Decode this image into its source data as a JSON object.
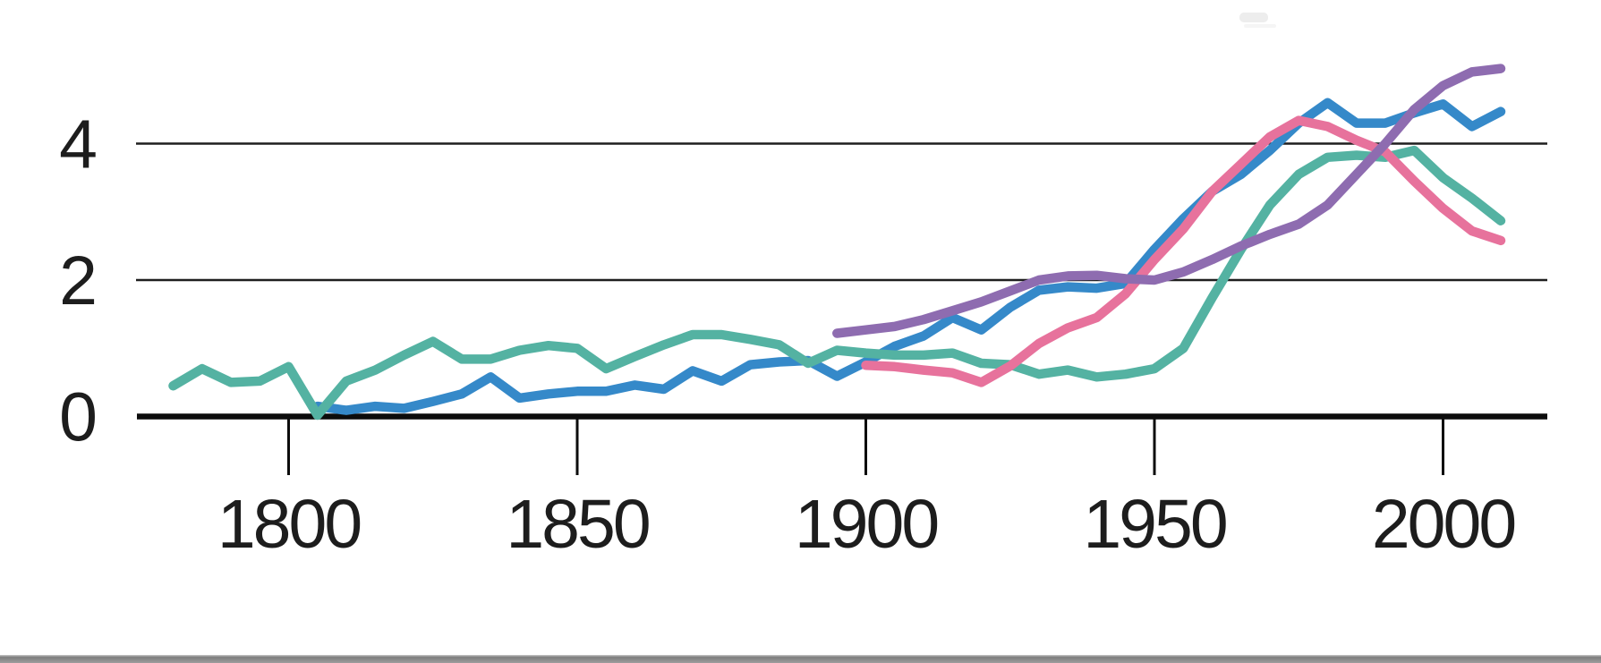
{
  "page": {
    "background": "#ffffff"
  },
  "footer_bar": {
    "color": "#9a9a9a"
  },
  "chart_data": {
    "type": "line",
    "title": "",
    "xlabel": "",
    "ylabel": "",
    "legend": "none",
    "grid": "horizontal-only",
    "x_range": [
      1774,
      2018
    ],
    "y_range": [
      0,
      5.45
    ],
    "x_ticks": [
      1800,
      1850,
      1900,
      1950,
      2000
    ],
    "y_ticks": [
      0,
      2,
      4
    ],
    "gridline_y_values": [
      2,
      4
    ],
    "axis_color": "#0c0c0c",
    "label_color": "#1d1d1d",
    "series": [
      {
        "name": "series-blue",
        "color": "#3589c9",
        "points": [
          [
            1805,
            0.15
          ],
          [
            1810,
            0.09
          ],
          [
            1815,
            0.15
          ],
          [
            1820,
            0.12
          ],
          [
            1825,
            0.22
          ],
          [
            1830,
            0.33
          ],
          [
            1835,
            0.58
          ],
          [
            1840,
            0.27
          ],
          [
            1845,
            0.33
          ],
          [
            1850,
            0.37
          ],
          [
            1855,
            0.37
          ],
          [
            1860,
            0.46
          ],
          [
            1865,
            0.4
          ],
          [
            1870,
            0.67
          ],
          [
            1875,
            0.52
          ],
          [
            1880,
            0.76
          ],
          [
            1885,
            0.8
          ],
          [
            1890,
            0.82
          ],
          [
            1895,
            0.59
          ],
          [
            1900,
            0.8
          ],
          [
            1905,
            1.03
          ],
          [
            1910,
            1.18
          ],
          [
            1915,
            1.45
          ],
          [
            1920,
            1.27
          ],
          [
            1925,
            1.6
          ],
          [
            1930,
            1.85
          ],
          [
            1935,
            1.9
          ],
          [
            1940,
            1.88
          ],
          [
            1945,
            1.95
          ],
          [
            1950,
            2.45
          ],
          [
            1955,
            2.9
          ],
          [
            1960,
            3.3
          ],
          [
            1965,
            3.55
          ],
          [
            1970,
            3.9
          ],
          [
            1975,
            4.3
          ],
          [
            1980,
            4.6
          ],
          [
            1985,
            4.3
          ],
          [
            1990,
            4.3
          ],
          [
            1995,
            4.45
          ],
          [
            2000,
            4.58
          ],
          [
            2005,
            4.25
          ],
          [
            2010,
            4.47
          ]
        ]
      },
      {
        "name": "series-teal",
        "color": "#54b2a2",
        "points": [
          [
            1780,
            0.45
          ],
          [
            1785,
            0.7
          ],
          [
            1790,
            0.5
          ],
          [
            1795,
            0.52
          ],
          [
            1800,
            0.73
          ],
          [
            1805,
            0.02
          ],
          [
            1810,
            0.52
          ],
          [
            1815,
            0.68
          ],
          [
            1820,
            0.9
          ],
          [
            1825,
            1.1
          ],
          [
            1830,
            0.84
          ],
          [
            1835,
            0.84
          ],
          [
            1840,
            0.97
          ],
          [
            1845,
            1.04
          ],
          [
            1850,
            1.0
          ],
          [
            1855,
            0.7
          ],
          [
            1860,
            0.88
          ],
          [
            1865,
            1.05
          ],
          [
            1870,
            1.2
          ],
          [
            1875,
            1.2
          ],
          [
            1880,
            1.13
          ],
          [
            1885,
            1.05
          ],
          [
            1890,
            0.78
          ],
          [
            1895,
            0.97
          ],
          [
            1900,
            0.93
          ],
          [
            1905,
            0.9
          ],
          [
            1910,
            0.9
          ],
          [
            1915,
            0.93
          ],
          [
            1920,
            0.78
          ],
          [
            1925,
            0.76
          ],
          [
            1930,
            0.62
          ],
          [
            1935,
            0.68
          ],
          [
            1940,
            0.58
          ],
          [
            1945,
            0.62
          ],
          [
            1950,
            0.7
          ],
          [
            1955,
            1.0
          ],
          [
            1960,
            1.74
          ],
          [
            1965,
            2.45
          ],
          [
            1970,
            3.1
          ],
          [
            1975,
            3.55
          ],
          [
            1980,
            3.8
          ],
          [
            1985,
            3.83
          ],
          [
            1990,
            3.8
          ],
          [
            1995,
            3.9
          ],
          [
            2000,
            3.5
          ],
          [
            2005,
            3.2
          ],
          [
            2010,
            2.87
          ]
        ]
      },
      {
        "name": "series-pink",
        "color": "#e7729c",
        "points": [
          [
            1900,
            0.75
          ],
          [
            1905,
            0.73
          ],
          [
            1910,
            0.68
          ],
          [
            1915,
            0.64
          ],
          [
            1920,
            0.5
          ],
          [
            1925,
            0.74
          ],
          [
            1930,
            1.07
          ],
          [
            1935,
            1.3
          ],
          [
            1940,
            1.45
          ],
          [
            1945,
            1.8
          ],
          [
            1950,
            2.3
          ],
          [
            1955,
            2.75
          ],
          [
            1960,
            3.3
          ],
          [
            1965,
            3.7
          ],
          [
            1970,
            4.1
          ],
          [
            1975,
            4.34
          ],
          [
            1980,
            4.25
          ],
          [
            1985,
            4.05
          ],
          [
            1990,
            3.88
          ],
          [
            1995,
            3.45
          ],
          [
            2000,
            3.05
          ],
          [
            2005,
            2.72
          ],
          [
            2010,
            2.58
          ]
        ]
      },
      {
        "name": "series-purple",
        "color": "#8e6cb0",
        "points": [
          [
            1895,
            1.22
          ],
          [
            1900,
            1.27
          ],
          [
            1905,
            1.32
          ],
          [
            1910,
            1.42
          ],
          [
            1915,
            1.55
          ],
          [
            1920,
            1.68
          ],
          [
            1925,
            1.84
          ],
          [
            1930,
            2.0
          ],
          [
            1935,
            2.06
          ],
          [
            1940,
            2.07
          ],
          [
            1945,
            2.02
          ],
          [
            1950,
            2.0
          ],
          [
            1955,
            2.12
          ],
          [
            1960,
            2.3
          ],
          [
            1965,
            2.5
          ],
          [
            1970,
            2.67
          ],
          [
            1975,
            2.82
          ],
          [
            1980,
            3.1
          ],
          [
            1985,
            3.55
          ],
          [
            1990,
            4.0
          ],
          [
            1995,
            4.5
          ],
          [
            2000,
            4.85
          ],
          [
            2005,
            5.05
          ],
          [
            2010,
            5.1
          ]
        ]
      }
    ]
  }
}
